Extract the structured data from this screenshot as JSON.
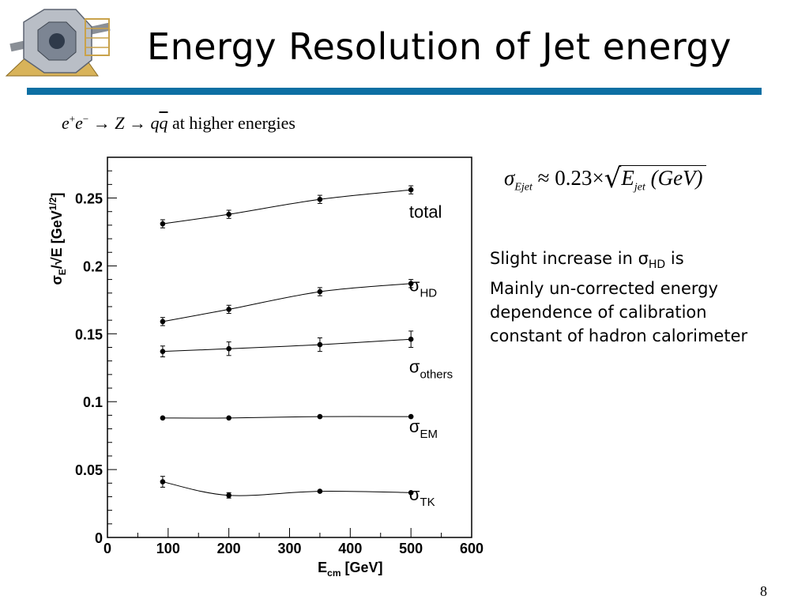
{
  "slide": {
    "title": "Energy Resolution of Jet energy",
    "process": {
      "e": "e",
      "plus": "+",
      "minus": "−",
      "arrow1": " → Z → ",
      "q": "q",
      "qbar": "q",
      "rest": " at higher energies"
    },
    "formula": {
      "sigma": "σ",
      "sigma_sub": "Ejet",
      "approx": " ≈ 0.23×",
      "radical": "√",
      "e": "E",
      "e_sub": "jet",
      "unit": " (GeV)"
    },
    "comment": {
      "line1_pre": "Slight increase in ",
      "sigma": "σ",
      "sigma_sub": "HD",
      "line1_post": " is",
      "line2": "Mainly un-corrected energy",
      "line3": "dependence of calibration",
      "line4": "constant of hadron calorimeter"
    },
    "page_number": "8",
    "colors": {
      "rule": "#0d6fa3",
      "background": "#ffffff",
      "text": "#000000"
    }
  },
  "chart_data": {
    "type": "line",
    "xlabel": "E",
    "xlabel_sub": "cm",
    "xlabel_unit": " [GeV]",
    "ylabel": "σ",
    "ylabel_sub": "E",
    "ylabel_rest": "/√E [GeV",
    "ylabel_sup": "1/2",
    "ylabel_close": "]",
    "xlim": [
      0,
      600
    ],
    "ylim": [
      0,
      0.28
    ],
    "xticks": [
      0,
      100,
      200,
      300,
      400,
      500,
      600
    ],
    "xtick_labels": [
      "0",
      "100",
      "200",
      "300",
      "400",
      "500",
      "600"
    ],
    "yticks": [
      0,
      0.05,
      0.1,
      0.15,
      0.2,
      0.25
    ],
    "ytick_labels": [
      "0",
      "0.05",
      "0.1",
      "0.15",
      "0.2",
      "0.25"
    ],
    "grid": false,
    "series": [
      {
        "name": "total",
        "base": "",
        "sub": "",
        "x": [
          91,
          200,
          350,
          500
        ],
        "y": [
          0.231,
          0.238,
          0.249,
          0.256
        ],
        "err": [
          0.003,
          0.003,
          0.003,
          0.003
        ]
      },
      {
        "name": "σHD",
        "base": "σ",
        "sub": "HD",
        "x": [
          91,
          200,
          350,
          500
        ],
        "y": [
          0.159,
          0.168,
          0.181,
          0.187
        ],
        "err": [
          0.003,
          0.003,
          0.003,
          0.003
        ]
      },
      {
        "name": "σothers",
        "base": "σ",
        "sub": "others",
        "x": [
          91,
          200,
          350,
          500
        ],
        "y": [
          0.137,
          0.139,
          0.142,
          0.146
        ],
        "err": [
          0.004,
          0.005,
          0.005,
          0.006
        ]
      },
      {
        "name": "σEM",
        "base": "σ",
        "sub": "EM",
        "x": [
          91,
          200,
          350,
          500
        ],
        "y": [
          0.088,
          0.088,
          0.089,
          0.089
        ],
        "err": [
          0,
          0,
          0,
          0
        ]
      },
      {
        "name": "σTK",
        "base": "σ",
        "sub": "TK",
        "x": [
          91,
          200,
          350,
          500
        ],
        "y": [
          0.041,
          0.031,
          0.034,
          0.033
        ],
        "err": [
          0.004,
          0.002,
          0,
          0
        ]
      }
    ]
  }
}
